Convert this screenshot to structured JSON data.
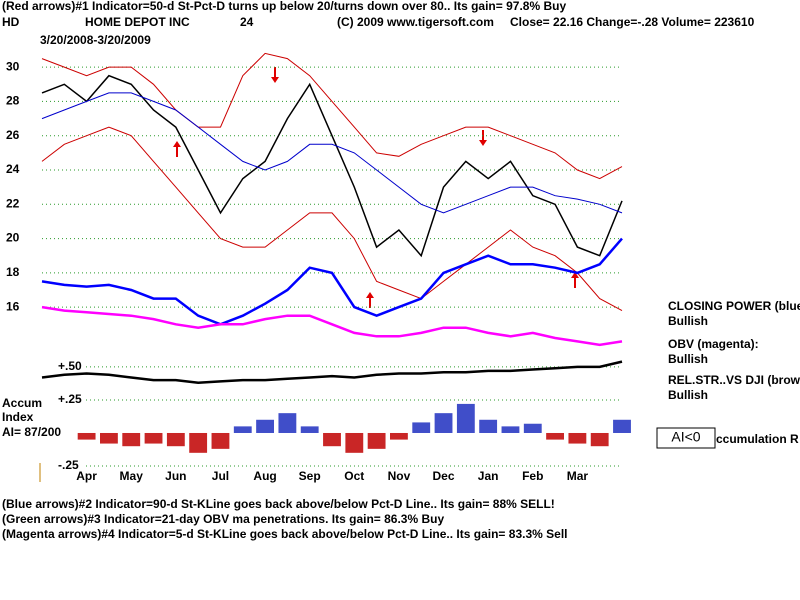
{
  "header": {
    "line1": "(Red arrows)#1 Indicator=50-d St-Pct-D turns up below 20/turns down over 80.. Its gain= 97.8% Buy",
    "symbol": "HD",
    "company": "HOME DEPOT INC",
    "code": "24",
    "copyright": "(C) 2009 www.tigersoft.com",
    "quote": "Close=  22.16  Change=-.28 Volume= 223610",
    "period": "3/20/2008-3/20/2009"
  },
  "side": {
    "cp_label": "CLOSING POWER (blue",
    "cp_status": "Bullish",
    "obv_label": "OBV (magenta):",
    "obv_status": "Bullish",
    "rs_label": "REL.STR..VS DJI (brow",
    "rs_status": "Bullish",
    "ai_box": "AI<0",
    "ai_text": "ccumulation R"
  },
  "accum": {
    "title1": "Accum",
    "title2": "Index",
    "score": "AI= 87/200"
  },
  "footer": [
    "(Blue arrows)#2 Indicator=90-d St-KLine goes back above/below Pct-D Line.. Its gain= 88% SELL!",
    "(Green arrows)#3 Indicator=21-day OBV ma penetrations. Its gain= 86.3% Buy",
    "(Magenta arrows)#4 Indicator=5-d St-KLine goes back above/below Pct-D Line.. Its gain= 83.3% Sell"
  ],
  "chart_data": [
    {
      "type": "line",
      "categories": [
        null,
        null,
        "Apr",
        null,
        "May",
        null,
        "Jun",
        null,
        "Jul",
        null,
        "Aug",
        null,
        "Sep",
        null,
        "Oct",
        null,
        "Nov",
        null,
        "Dec",
        null,
        "Jan",
        null,
        "Feb",
        null,
        "Mar",
        null,
        null
      ],
      "ylim": [
        13.5,
        31
      ],
      "yticks": [
        16,
        18,
        20,
        22,
        24,
        26,
        28,
        30
      ],
      "grid": true,
      "grid_color": "#2a9a2a",
      "series": [
        {
          "color": "#000000",
          "width": 1.5,
          "values": [
            28.5,
            29,
            28,
            29.5,
            29,
            27.5,
            26.5,
            24,
            21.5,
            23.5,
            24.5,
            27,
            29,
            26,
            23,
            19.5,
            20.5,
            19,
            23,
            24.5,
            23.5,
            24.5,
            22.5,
            22,
            19.5,
            19,
            22.2
          ]
        },
        {
          "color": "#cc0000",
          "width": 1,
          "values": [
            30.5,
            30,
            29.5,
            30,
            30,
            29,
            27.5,
            26.5,
            26.5,
            29.5,
            30.8,
            30.5,
            29.5,
            28,
            26.5,
            25,
            24.8,
            25.5,
            26,
            26.5,
            26.5,
            26,
            25.5,
            25,
            24,
            23.5,
            24.2
          ]
        },
        {
          "color": "#cc0000",
          "width": 1,
          "values": [
            24.5,
            25.5,
            26,
            26.5,
            26,
            24.5,
            23,
            21.5,
            20,
            19.5,
            19.5,
            20.5,
            21.5,
            21.5,
            20,
            17.5,
            17,
            16.5,
            17.5,
            18.5,
            19.5,
            20.5,
            19.5,
            19,
            18,
            16.5,
            15.8
          ]
        },
        {
          "color": "#0000cc",
          "width": 1,
          "values": [
            27,
            27.5,
            28,
            28.5,
            28.5,
            28,
            27.5,
            26.5,
            25.5,
            24.5,
            24,
            24.5,
            25.5,
            25.5,
            25,
            24,
            23,
            22,
            21.5,
            22,
            22.5,
            23,
            23,
            22.5,
            22.3,
            22,
            21.5
          ]
        },
        {
          "color": "#0000ff",
          "width": 2.5,
          "values": [
            17.5,
            17.3,
            17.2,
            17.3,
            17,
            16.5,
            16.5,
            15.5,
            15,
            15.5,
            16.2,
            17,
            18.3,
            18,
            16,
            15.5,
            16,
            16.5,
            18,
            18.5,
            19,
            18.5,
            18.5,
            18.3,
            18,
            18.5,
            20
          ]
        },
        {
          "color": "#ff00ff",
          "width": 2.5,
          "values": [
            16,
            15.8,
            15.7,
            15.6,
            15.5,
            15.3,
            15,
            14.8,
            15,
            15,
            15.3,
            15.5,
            15.5,
            15,
            14.5,
            14.3,
            14.3,
            14.5,
            14.8,
            14.8,
            14.5,
            14.3,
            14.5,
            14.2,
            14,
            13.8,
            14
          ]
        }
      ]
    },
    {
      "type": "bar",
      "ylim": [
        -0.28,
        0.59
      ],
      "yticks": [
        {
          "value": 0.5,
          "label": "+.50"
        },
        {
          "value": 0.25,
          "label": "+.25"
        },
        {
          "value": -0.25,
          "label": "-.25"
        }
      ],
      "grid": true,
      "grid_color": "#2a9a2a",
      "positive_color": "#1f2fbf",
      "negative_color": "#c00000",
      "values": [
        null,
        null,
        -0.05,
        -0.08,
        -0.1,
        -0.08,
        -0.1,
        -0.15,
        -0.12,
        0.05,
        0.1,
        0.15,
        0.05,
        -0.1,
        -0.15,
        -0.12,
        -0.05,
        0.08,
        0.15,
        0.22,
        0.1,
        0.05,
        0.07,
        -0.05,
        -0.08,
        -0.1,
        0.1
      ],
      "series": [
        {
          "color": "#000000",
          "width": 2.5,
          "values": [
            0.42,
            0.44,
            0.45,
            0.44,
            0.42,
            0.4,
            0.4,
            0.38,
            0.39,
            0.4,
            0.4,
            0.41,
            0.42,
            0.43,
            0.42,
            0.44,
            0.45,
            0.45,
            0.46,
            0.46,
            0.47,
            0.47,
            0.48,
            0.49,
            0.5,
            0.5,
            0.54
          ]
        }
      ]
    }
  ]
}
